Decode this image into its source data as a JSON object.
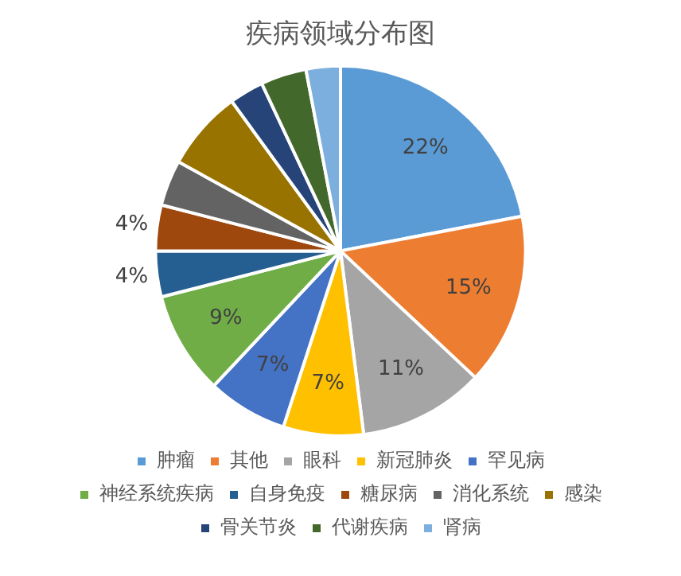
{
  "chart_data": {
    "type": "pie",
    "title": "疾病领域分布图",
    "categories": [
      "肿瘤",
      "其他",
      "眼科",
      "新冠肺炎",
      "罕见病",
      "神经系统疾病",
      "自身免疫",
      "糖尿病",
      "消化系统",
      "感染",
      "骨关节炎",
      "代谢疾病",
      "肾病"
    ],
    "values": [
      22,
      15,
      11,
      7,
      7,
      9,
      4,
      4,
      4,
      7,
      3,
      4,
      3
    ],
    "value_labels": [
      "22%",
      "15%",
      "11%",
      "7%",
      "7%",
      "9%",
      "4%",
      "4%",
      null,
      null,
      null,
      null,
      null
    ],
    "colors": [
      "#5b9bd5",
      "#ed7d31",
      "#a5a5a5",
      "#ffc000",
      "#4472c4",
      "#70ad47",
      "#255e91",
      "#9e480e",
      "#636363",
      "#997300",
      "#264478",
      "#43682b",
      "#7cafdd"
    ],
    "legend": "bottom"
  }
}
